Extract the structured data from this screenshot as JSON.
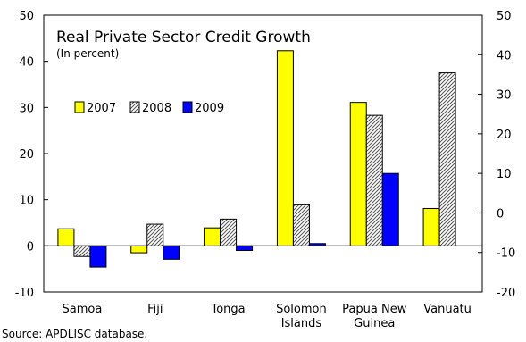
{
  "chart_data": {
    "type": "bar",
    "title": "Real Private Sector Credit Growth",
    "subtitle": "(In percent)",
    "categories": [
      [
        "Samoa"
      ],
      [
        "Fiji"
      ],
      [
        "Tonga"
      ],
      [
        "Solomon",
        "Islands"
      ],
      [
        "Papua New",
        "Guinea"
      ],
      [
        "Vanuatu"
      ]
    ],
    "series": [
      {
        "name": "2007",
        "color": "#ffff00",
        "pattern": "solid",
        "values": [
          3.7,
          -1.5,
          3.9,
          42.3,
          31.1,
          8.1
        ]
      },
      {
        "name": "2008",
        "color": "#ffffff",
        "pattern": "diagonal-hatch",
        "values": [
          -2.3,
          4.7,
          5.8,
          8.9,
          28.3,
          37.5
        ]
      },
      {
        "name": "2009",
        "color": "#0000ff",
        "pattern": "solid",
        "values": [
          -4.6,
          -2.9,
          -1.0,
          0.5,
          15.7,
          null
        ]
      }
    ],
    "y_left": {
      "min": -10,
      "max": 50,
      "ticks": [
        -10,
        0,
        10,
        20,
        30,
        40,
        50
      ]
    },
    "y_right": {
      "min": -20,
      "max": 50,
      "ticks": [
        -20,
        -10,
        0,
        10,
        20,
        30,
        40,
        50
      ]
    },
    "legend": {
      "position": "top-left",
      "items": [
        "2007",
        "2008",
        "2009"
      ]
    },
    "grid": false
  },
  "source": "Source: APDLISC database."
}
